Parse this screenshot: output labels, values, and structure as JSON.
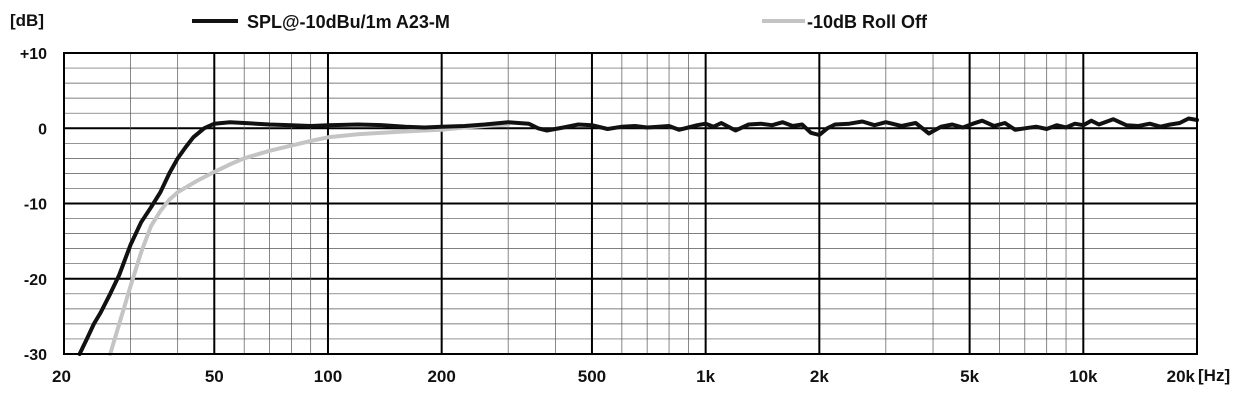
{
  "chart_data": {
    "type": "line",
    "title": "",
    "ylabel": "[dB]",
    "xunit": "[Hz]",
    "xscale": "log",
    "xlim": [
      20,
      20000
    ],
    "ylim": [
      -30,
      10
    ],
    "grid": true,
    "legend_position": "top",
    "x_ticks": [
      {
        "value": 20,
        "label": "20"
      },
      {
        "value": 50,
        "label": "50"
      },
      {
        "value": 100,
        "label": "100"
      },
      {
        "value": 200,
        "label": "200"
      },
      {
        "value": 500,
        "label": "500"
      },
      {
        "value": 1000,
        "label": "1k"
      },
      {
        "value": 2000,
        "label": "2k"
      },
      {
        "value": 5000,
        "label": "5k"
      },
      {
        "value": 10000,
        "label": "10k"
      },
      {
        "value": 20000,
        "label": "20k"
      }
    ],
    "y_ticks": [
      {
        "value": 10,
        "label": "+10"
      },
      {
        "value": 0,
        "label": "0"
      },
      {
        "value": -10,
        "label": "-10"
      },
      {
        "value": -20,
        "label": "-20"
      },
      {
        "value": -30,
        "label": "-30"
      }
    ],
    "series": [
      {
        "name": "SPL@-10dBu/1m A23-M",
        "color": "#111111",
        "style": "solid",
        "x": [
          22,
          23,
          24,
          25,
          26.5,
          28,
          30,
          32,
          34,
          36,
          38,
          40,
          42,
          44,
          47,
          50,
          55,
          60,
          70,
          80,
          90,
          100,
          120,
          140,
          160,
          180,
          200,
          230,
          260,
          300,
          340,
          360,
          380,
          420,
          460,
          500,
          550,
          600,
          650,
          700,
          750,
          800,
          850,
          900,
          950,
          1000,
          1050,
          1100,
          1200,
          1300,
          1400,
          1500,
          1600,
          1700,
          1800,
          1900,
          2000,
          2100,
          2200,
          2400,
          2600,
          2800,
          3000,
          3300,
          3600,
          3900,
          4200,
          4500,
          4800,
          5100,
          5400,
          5800,
          6200,
          6600,
          7000,
          7500,
          8000,
          8500,
          9000,
          9500,
          10000,
          10500,
          11000,
          12000,
          13000,
          14000,
          15000,
          16000,
          17000,
          18000,
          19000,
          20000
        ],
        "y": [
          -30,
          -28,
          -26,
          -24.5,
          -22,
          -19.5,
          -15.5,
          -12.5,
          -10.5,
          -8.5,
          -6,
          -4,
          -2.5,
          -1.2,
          0,
          0.6,
          0.8,
          0.7,
          0.5,
          0.4,
          0.3,
          0.4,
          0.5,
          0.4,
          0.2,
          0.1,
          0.2,
          0.3,
          0.5,
          0.8,
          0.6,
          0,
          -0.3,
          0.1,
          0.5,
          0.4,
          -0.1,
          0.2,
          0.3,
          0.1,
          0.2,
          0.3,
          -0.2,
          0.1,
          0.4,
          0.6,
          0.2,
          0.7,
          -0.3,
          0.5,
          0.6,
          0.4,
          0.8,
          0.3,
          0.5,
          -0.6,
          -0.9,
          0,
          0.5,
          0.6,
          0.9,
          0.4,
          0.8,
          0.3,
          0.7,
          -0.7,
          0.2,
          0.5,
          0.1,
          0.6,
          1,
          0.3,
          0.7,
          -0.2,
          0,
          0.2,
          -0.1,
          0.4,
          0.1,
          0.6,
          0.4,
          1,
          0.5,
          1.2,
          0.4,
          0.3,
          0.6,
          0.2,
          0.5,
          0.7,
          1.3,
          1.1
        ]
      },
      {
        "name": "-10dB Roll Off",
        "color": "#c4c4c4",
        "style": "solid",
        "x": [
          26.5,
          28,
          30,
          32,
          34,
          36,
          38,
          40,
          45,
          50,
          55,
          60,
          70,
          80,
          90,
          100,
          120,
          150,
          180,
          200,
          230,
          260,
          300
        ],
        "y": [
          -30,
          -26,
          -21,
          -16.5,
          -13,
          -11,
          -9.5,
          -8.5,
          -7,
          -5.8,
          -4.8,
          -4,
          -3,
          -2.3,
          -1.7,
          -1.2,
          -0.8,
          -0.5,
          -0.3,
          -0.2,
          0.1,
          0.3,
          0.5
        ]
      }
    ]
  }
}
